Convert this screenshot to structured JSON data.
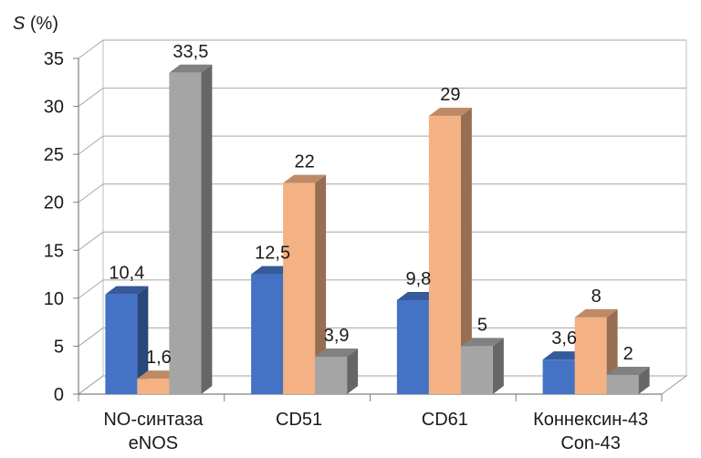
{
  "chart_data": {
    "type": "bar",
    "ylabel_symbol": "S",
    "ylabel_unit": " (%)",
    "categories": [
      [
        "NO-синтаза",
        "eNOS"
      ],
      [
        "CD51"
      ],
      [
        "CD61"
      ],
      [
        "Коннексин-43",
        "Con-43"
      ]
    ],
    "series": [
      {
        "values": [
          10.4,
          12.5,
          9.8,
          3.6
        ],
        "labels": [
          "10,4",
          "12,5",
          "9,8",
          "3,6"
        ],
        "color": "#4472C4"
      },
      {
        "values": [
          1.6,
          22,
          29,
          8
        ],
        "labels": [
          "1,6",
          "22",
          "29",
          "8"
        ],
        "color": "#F4B183"
      },
      {
        "values": [
          33.5,
          3.9,
          5,
          2
        ],
        "labels": [
          "33,5",
          "3,9",
          "5",
          "2"
        ],
        "color": "#A5A5A5"
      }
    ],
    "ylim": [
      0,
      35
    ],
    "yticks": [
      "0",
      "5",
      "10",
      "15",
      "20",
      "25",
      "30",
      "35"
    ],
    "grid": true
  }
}
